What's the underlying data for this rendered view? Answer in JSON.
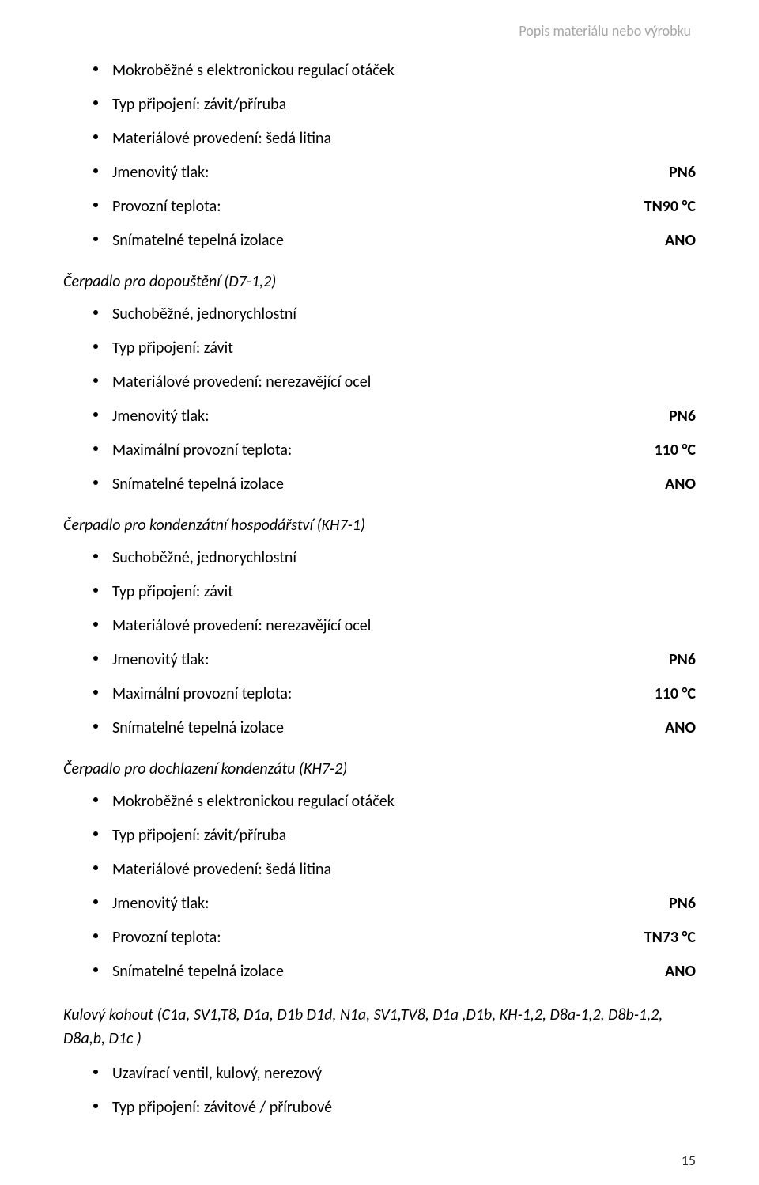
{
  "header": {
    "title": "Popis materiálu nebo výrobku"
  },
  "sections": [
    {
      "title": "",
      "items": [
        {
          "label": "Mokroběžné s elektronickou regulací otáček",
          "value": ""
        },
        {
          "label": "Typ připojení: závit/příruba",
          "value": ""
        },
        {
          "label": "Materiálové provedení: šedá litina",
          "value": ""
        },
        {
          "label": "Jmenovitý tlak:",
          "value": "PN6"
        },
        {
          "label": "Provozní teplota:",
          "value": "TN90 °C"
        },
        {
          "label": "Snímatelné tepelná izolace",
          "value": "ANO"
        }
      ]
    },
    {
      "title": "Čerpadlo pro dopouštění (D7-1,2)",
      "items": [
        {
          "label": "Suchoběžné, jednorychlostní",
          "value": ""
        },
        {
          "label": "Typ připojení: závit",
          "value": ""
        },
        {
          "label": "Materiálové provedení: nerezavějící ocel",
          "value": ""
        },
        {
          "label": "Jmenovitý tlak:",
          "value": "PN6"
        },
        {
          "label": "Maximální provozní teplota:",
          "value": "110 °C"
        },
        {
          "label": "Snímatelné tepelná izolace",
          "value": "ANO"
        }
      ]
    },
    {
      "title": "Čerpadlo pro kondenzátní hospodářství (KH7-1)",
      "items": [
        {
          "label": "Suchoběžné, jednorychlostní",
          "value": ""
        },
        {
          "label": "Typ připojení: závit",
          "value": ""
        },
        {
          "label": "Materiálové provedení: nerezavějící ocel",
          "value": ""
        },
        {
          "label": "Jmenovitý tlak:",
          "value": "PN6"
        },
        {
          "label": "Maximální provozní teplota:",
          "value": "110 °C"
        },
        {
          "label": "Snímatelné tepelná izolace",
          "value": "ANO"
        }
      ]
    },
    {
      "title": "Čerpadlo pro dochlazení kondenzátu (KH7-2)",
      "items": [
        {
          "label": "Mokroběžné s elektronickou regulací otáček",
          "value": ""
        },
        {
          "label": "Typ připojení: závit/příruba",
          "value": ""
        },
        {
          "label": "Materiálové provedení: šedá litina",
          "value": ""
        },
        {
          "label": "Jmenovitý tlak:",
          "value": "PN6"
        },
        {
          "label": "Provozní teplota:",
          "value": "TN73 °C"
        },
        {
          "label": "Snímatelné tepelná izolace",
          "value": "ANO"
        }
      ]
    }
  ],
  "footnote": {
    "title": "Kulový kohout (C1a, SV1,T8, D1a, D1b D1d, N1a, SV1,TV8, D1a ,D1b, KH-1,2, D8a-1,2, D8b-1,2, D8a,b, D1c )",
    "items": [
      {
        "label": "Uzavírací ventil, kulový, nerezový",
        "value": ""
      },
      {
        "label": "Typ připojení: závitové / přírubové",
        "value": ""
      }
    ]
  },
  "page_number": "15"
}
